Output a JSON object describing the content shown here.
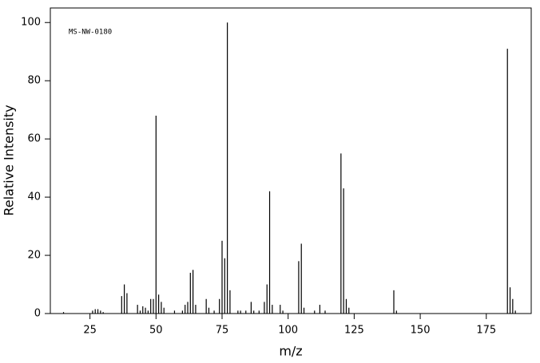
{
  "chart_data": {
    "type": "bar",
    "annotation": "MS-NW-0180",
    "x_label": "m/z",
    "y_label": "Relative Intensity",
    "color": "#000000",
    "x": [
      15,
      26,
      27,
      28,
      29,
      30,
      37,
      38,
      39,
      43,
      44,
      45,
      46,
      47,
      48,
      49,
      50,
      51,
      52,
      53,
      57,
      60,
      61,
      62,
      63,
      64,
      65,
      69,
      70,
      72,
      74,
      75,
      76,
      77,
      78,
      81,
      82,
      84,
      86,
      87,
      89,
      91,
      92,
      93,
      94,
      97,
      98,
      104,
      105,
      106,
      110,
      112,
      114,
      120,
      121,
      122,
      123,
      140,
      141,
      183,
      184,
      185,
      186
    ],
    "values": [
      0.5,
      1,
      1.5,
      1.5,
      1,
      0.5,
      6,
      10,
      7,
      3,
      1,
      2.5,
      2,
      1,
      5,
      5,
      68,
      6.5,
      4,
      2,
      1,
      1,
      3,
      4,
      14,
      15,
      3,
      5,
      2,
      1,
      5,
      25,
      19,
      100,
      8,
      1,
      1,
      1,
      4,
      1,
      1,
      4,
      10,
      42,
      3,
      3,
      1,
      18,
      24,
      2,
      1,
      3,
      1,
      55,
      43,
      5,
      2,
      8,
      1,
      91,
      9,
      5,
      1
    ],
    "xlim": [
      10,
      192
    ],
    "ylim": [
      0,
      105
    ],
    "xticks": [
      25,
      50,
      75,
      100,
      125,
      150,
      175
    ],
    "yticks": [
      0,
      20,
      40,
      60,
      80,
      100
    ]
  }
}
